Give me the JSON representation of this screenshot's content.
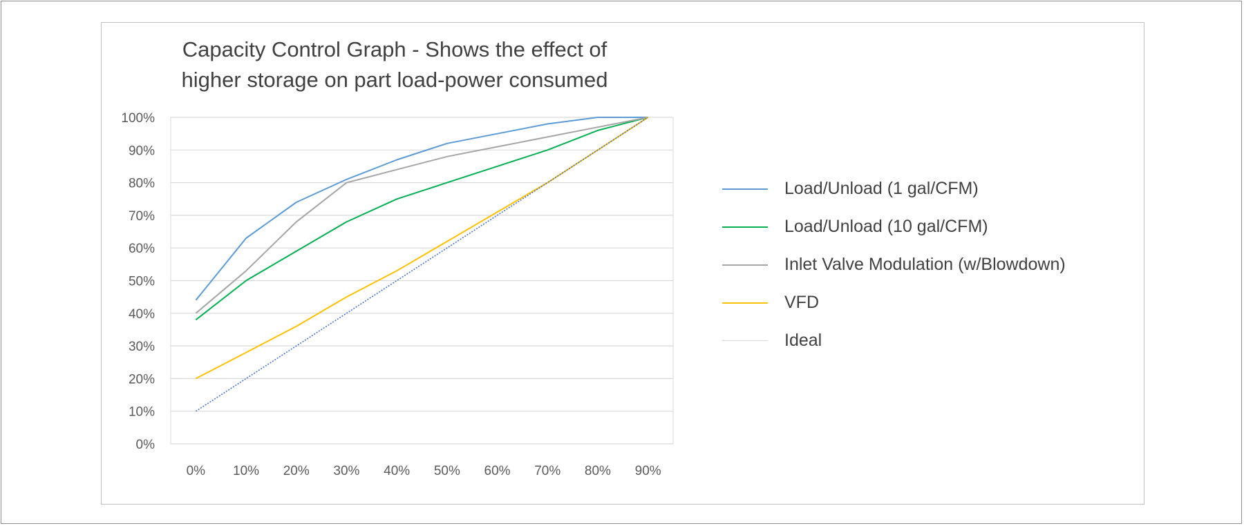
{
  "chart_data": {
    "type": "line",
    "title_lines": [
      "Capacity Control Graph - Shows the effect of",
      "higher storage on part load-power consumed"
    ],
    "xlabel": "",
    "ylabel": "",
    "categories": [
      "0%",
      "10%",
      "20%",
      "30%",
      "40%",
      "50%",
      "60%",
      "70%",
      "80%",
      "90%"
    ],
    "y_ticks": [
      "0%",
      "10%",
      "20%",
      "30%",
      "40%",
      "50%",
      "60%",
      "70%",
      "80%",
      "90%",
      "100%"
    ],
    "ylim": [
      0,
      100
    ],
    "grid": "horizontal",
    "legend_position": "right",
    "series": [
      {
        "name": "Load/Unload (1 gal/CFM)",
        "color": "#5b9bd5",
        "dashed": false,
        "values": [
          44,
          63,
          74,
          81,
          87,
          92,
          95,
          98,
          100,
          100
        ]
      },
      {
        "name": "Load/Unload (10 gal/CFM)",
        "color": "#00b050",
        "dashed": false,
        "values": [
          38,
          50,
          59,
          68,
          75,
          80,
          85,
          90,
          96,
          100
        ]
      },
      {
        "name": "Inlet Valve Modulation  (w/Blowdown)",
        "color": "#a5a5a5",
        "dashed": false,
        "values": [
          40,
          53,
          68,
          80,
          84,
          88,
          91,
          94,
          97,
          100
        ]
      },
      {
        "name": "VFD",
        "color": "#ffc000",
        "dashed": false,
        "values": [
          20,
          28,
          36,
          45,
          53,
          62,
          71,
          80,
          90,
          100
        ]
      },
      {
        "name": "Ideal",
        "color": "#4472c4",
        "dashed": true,
        "values": [
          10,
          20,
          30,
          40,
          50,
          60,
          70,
          80,
          90,
          100
        ]
      }
    ]
  }
}
